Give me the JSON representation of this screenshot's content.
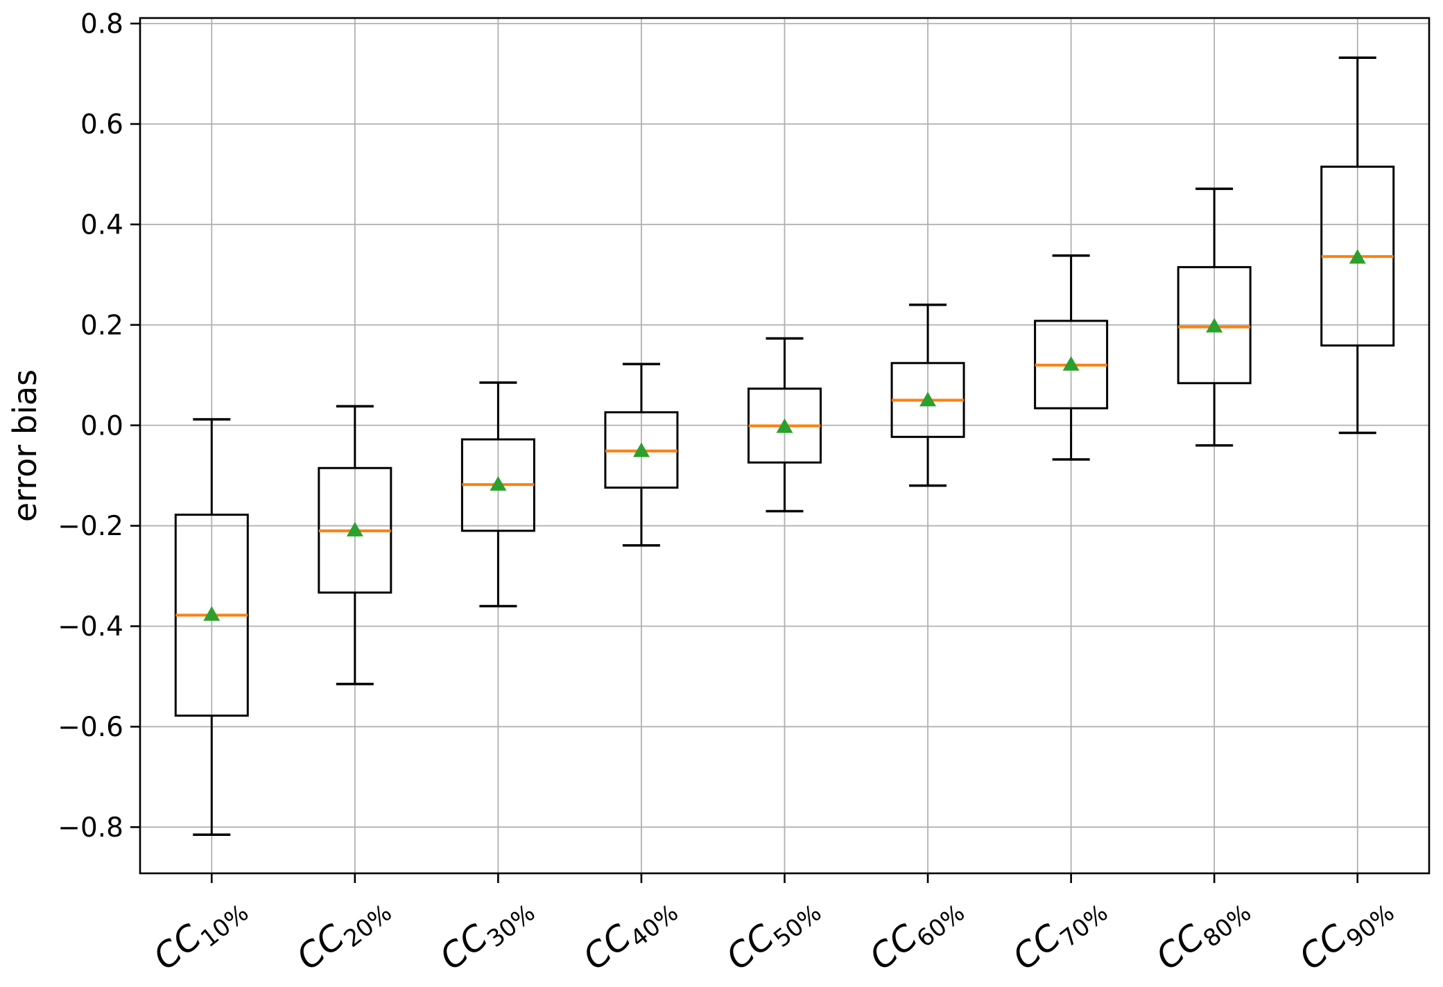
{
  "chart_data": {
    "type": "boxplot",
    "title": "",
    "xlabel": "",
    "ylabel": "error bias",
    "ylim": [
      -0.892,
      0.811
    ],
    "grid": true,
    "legend": null,
    "yticks": [
      {
        "value": 0.8,
        "label": "0.8"
      },
      {
        "value": 0.6,
        "label": "0.6"
      },
      {
        "value": 0.4,
        "label": "0.4"
      },
      {
        "value": 0.2,
        "label": "0.2"
      },
      {
        "value": 0.0,
        "label": "0.0"
      },
      {
        "value": -0.2,
        "label": "−0.2"
      },
      {
        "value": -0.4,
        "label": "−0.4"
      },
      {
        "value": -0.6,
        "label": "−0.6"
      },
      {
        "value": -0.8,
        "label": "−0.8"
      }
    ],
    "colors": {
      "box_line": "#000000",
      "median_line": "#ff7f0e",
      "mean_marker": "#2ca02c",
      "grid_line": "#b0b0b0",
      "spine": "#000000"
    },
    "boxes": [
      {
        "category": "CC10%",
        "category_base": "CC",
        "category_sub": "10%",
        "whisker_low": -0.815,
        "q1": -0.578,
        "median": -0.378,
        "mean": -0.376,
        "q3": -0.178,
        "whisker_high": 0.012
      },
      {
        "category": "CC20%",
        "category_base": "CC",
        "category_sub": "20%",
        "whisker_low": -0.515,
        "q1": -0.333,
        "median": -0.21,
        "mean": -0.208,
        "q3": -0.085,
        "whisker_high": 0.038
      },
      {
        "category": "CC30%",
        "category_base": "CC",
        "category_sub": "30%",
        "whisker_low": -0.36,
        "q1": -0.21,
        "median": -0.118,
        "mean": -0.117,
        "q3": -0.028,
        "whisker_high": 0.085
      },
      {
        "category": "CC40%",
        "category_base": "CC",
        "category_sub": "40%",
        "whisker_low": -0.239,
        "q1": -0.124,
        "median": -0.051,
        "mean": -0.05,
        "q3": 0.026,
        "whisker_high": 0.122
      },
      {
        "category": "CC50%",
        "category_base": "CC",
        "category_sub": "50%",
        "whisker_low": -0.171,
        "q1": -0.074,
        "median": -0.001,
        "mean": -0.002,
        "q3": 0.073,
        "whisker_high": 0.173
      },
      {
        "category": "CC60%",
        "category_base": "CC",
        "category_sub": "60%",
        "whisker_low": -0.12,
        "q1": -0.023,
        "median": 0.05,
        "mean": 0.051,
        "q3": 0.124,
        "whisker_high": 0.24
      },
      {
        "category": "CC70%",
        "category_base": "CC",
        "category_sub": "70%",
        "whisker_low": -0.068,
        "q1": 0.034,
        "median": 0.12,
        "mean": 0.122,
        "q3": 0.208,
        "whisker_high": 0.338
      },
      {
        "category": "CC80%",
        "category_base": "CC",
        "category_sub": "80%",
        "whisker_low": -0.04,
        "q1": 0.084,
        "median": 0.196,
        "mean": 0.198,
        "q3": 0.315,
        "whisker_high": 0.471
      },
      {
        "category": "CC90%",
        "category_base": "CC",
        "category_sub": "90%",
        "whisker_low": -0.015,
        "q1": 0.159,
        "median": 0.336,
        "mean": 0.335,
        "q3": 0.515,
        "whisker_high": 0.732
      }
    ]
  }
}
